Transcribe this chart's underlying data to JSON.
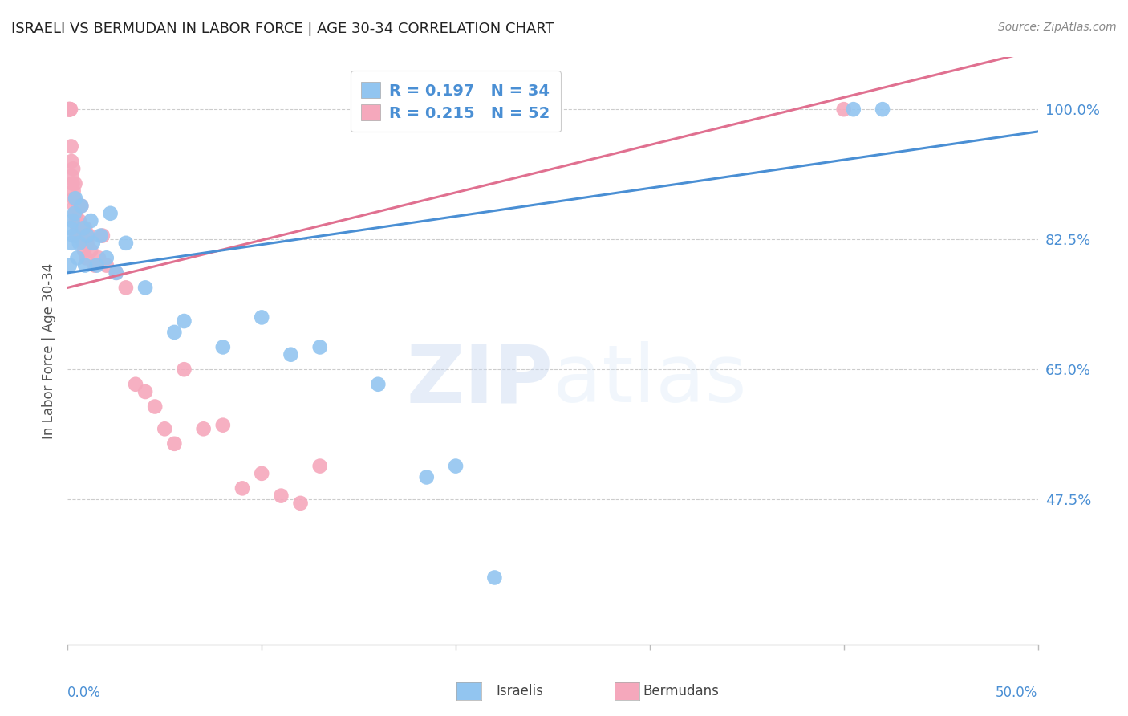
{
  "title": "ISRAELI VS BERMUDAN IN LABOR FORCE | AGE 30-34 CORRELATION CHART",
  "source": "Source: ZipAtlas.com",
  "ylabel": "In Labor Force | Age 30-34",
  "xlim": [
    0.0,
    50.0
  ],
  "ylim": [
    28.0,
    107.0
  ],
  "yticks": [
    47.5,
    65.0,
    82.5,
    100.0
  ],
  "ytick_labels": [
    "47.5%",
    "65.0%",
    "82.5%",
    "100.0%"
  ],
  "israeli_color": "#92c5f0",
  "bermudan_color": "#f5a8bc",
  "israeli_line_color": "#4a8fd4",
  "bermudan_line_color": "#e07090",
  "R_israeli": 0.197,
  "N_israeli": 34,
  "R_bermudan": 0.215,
  "N_bermudan": 52,
  "background_color": "#ffffff",
  "watermark_zip": "ZIP",
  "watermark_atlas": "atlas",
  "israeli_x": [
    0.1,
    0.15,
    0.2,
    0.25,
    0.3,
    0.35,
    0.4,
    0.5,
    0.6,
    0.7,
    0.8,
    0.9,
    1.0,
    1.2,
    1.3,
    1.5,
    1.7,
    2.0,
    2.2,
    2.5,
    3.0,
    4.0,
    5.5,
    6.0,
    8.0,
    10.0,
    11.5,
    13.0,
    16.0,
    18.5,
    20.0,
    22.0,
    40.5,
    42.0
  ],
  "israeli_y": [
    79.0,
    84.0,
    82.0,
    85.0,
    83.0,
    86.0,
    88.0,
    80.0,
    82.0,
    87.0,
    84.0,
    79.0,
    83.0,
    85.0,
    82.0,
    79.0,
    83.0,
    80.0,
    86.0,
    78.0,
    82.0,
    76.0,
    70.0,
    71.5,
    68.0,
    72.0,
    67.0,
    68.0,
    63.0,
    50.5,
    52.0,
    37.0,
    100.0,
    100.0
  ],
  "bermudan_x": [
    0.05,
    0.08,
    0.1,
    0.12,
    0.15,
    0.18,
    0.2,
    0.22,
    0.25,
    0.28,
    0.3,
    0.32,
    0.35,
    0.38,
    0.4,
    0.42,
    0.45,
    0.48,
    0.5,
    0.55,
    0.6,
    0.65,
    0.7,
    0.75,
    0.8,
    0.85,
    0.9,
    0.95,
    1.0,
    1.1,
    1.2,
    1.4,
    1.6,
    1.8,
    2.0,
    2.5,
    3.0,
    3.5,
    4.0,
    4.5,
    5.0,
    5.5,
    6.0,
    7.0,
    8.0,
    9.0,
    10.0,
    11.0,
    12.0,
    13.0,
    40.0,
    0.06
  ],
  "bermudan_y": [
    100.0,
    100.0,
    100.0,
    100.0,
    100.0,
    95.0,
    93.0,
    91.0,
    90.0,
    92.0,
    89.0,
    88.0,
    87.0,
    90.0,
    86.0,
    85.0,
    83.0,
    85.0,
    84.0,
    87.0,
    85.0,
    83.0,
    87.0,
    84.0,
    82.0,
    81.0,
    84.0,
    80.0,
    82.0,
    83.0,
    81.0,
    79.0,
    80.0,
    83.0,
    79.0,
    78.0,
    76.0,
    63.0,
    62.0,
    60.0,
    57.0,
    55.0,
    65.0,
    57.0,
    57.5,
    49.0,
    51.0,
    48.0,
    47.0,
    52.0,
    100.0,
    100.0
  ]
}
